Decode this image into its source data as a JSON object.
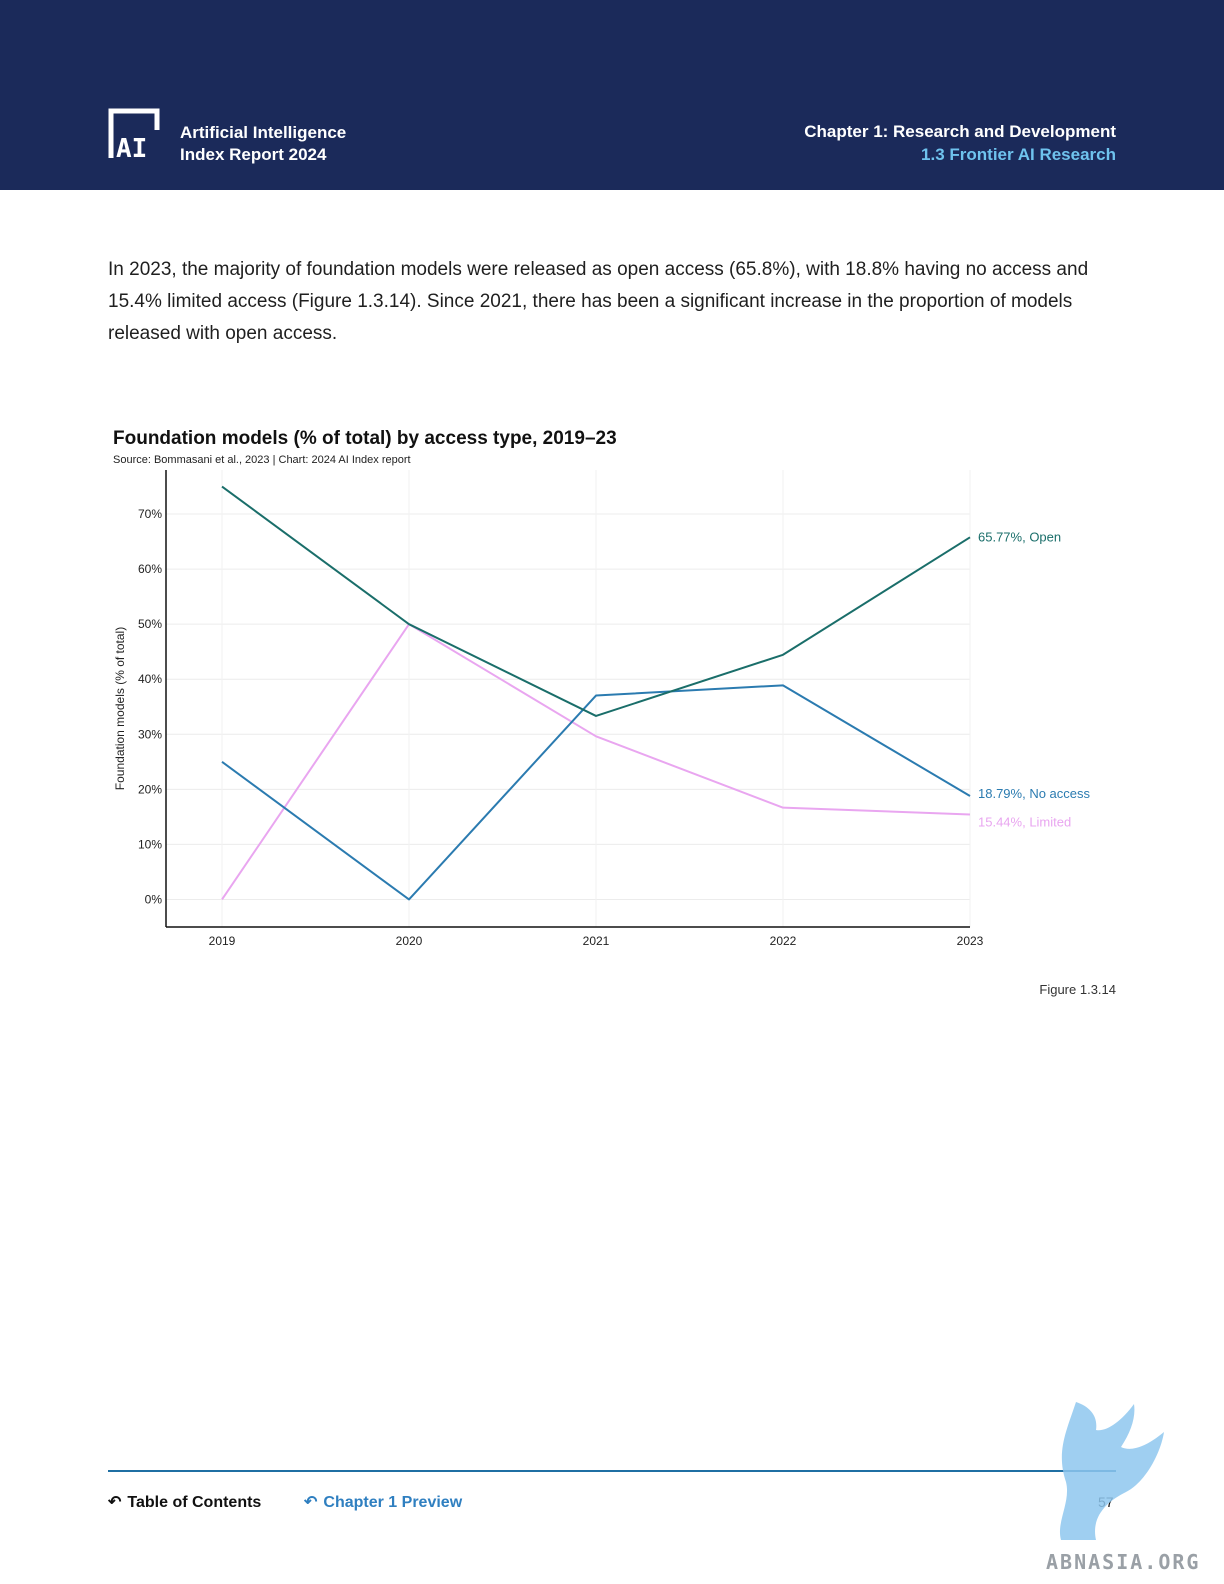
{
  "header": {
    "brand_line1": "Artificial Intelligence",
    "brand_line2": "Index Report 2024",
    "chapter": "Chapter 1: Research and Development",
    "section": "1.3 Frontier AI Research",
    "logo_text": "AI"
  },
  "intro_text": "In 2023, the majority of foundation models were released as open access (65.8%), with 18.8% having no access and 15.4% limited access (Figure 1.3.14). Since 2021, there has been a significant increase in the proportion of models released with open access.",
  "chart_data": {
    "type": "line",
    "title": "Foundation models (% of total) by access type, 2019–23",
    "source": "Source: Bommasani et al., 2023 | Chart: 2024 AI Index report",
    "ylabel": "Foundation models (% of total)",
    "xlabel": "",
    "x": [
      "2019",
      "2020",
      "2021",
      "2022",
      "2023"
    ],
    "ylim": [
      -5,
      78
    ],
    "yticks": [
      0,
      10,
      20,
      30,
      40,
      50,
      60,
      70
    ],
    "ytick_labels": [
      "0%",
      "10%",
      "20%",
      "30%",
      "40%",
      "50%",
      "60%",
      "70%"
    ],
    "grid": true,
    "series": [
      {
        "name": "Open",
        "color": "#1a6e6a",
        "values": [
          75,
          50,
          33.33,
          44.44,
          65.77
        ],
        "end_label": "65.77%, Open"
      },
      {
        "name": "No access",
        "color": "#2b7bb0",
        "values": [
          25,
          0,
          37.04,
          38.89,
          18.79
        ],
        "end_label": "18.79%, No access"
      },
      {
        "name": "Limited",
        "color": "#e9a6f0",
        "values": [
          0,
          50,
          29.63,
          16.67,
          15.44
        ],
        "end_label": "15.44%, Limited"
      }
    ]
  },
  "figure_label": "Figure 1.3.14",
  "footer": {
    "toc_label": "Table of Contents",
    "preview_label": "Chapter 1 Preview",
    "page_number": "57"
  },
  "watermark_text": "ABNASIA.ORG"
}
